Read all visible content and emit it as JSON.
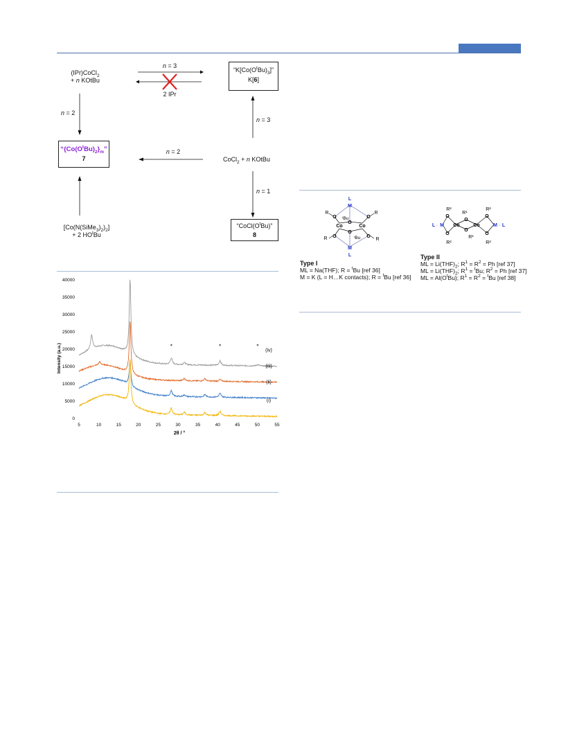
{
  "scheme": {
    "ipr_cocl2": "(IPr)CoCl",
    "ipr_cocl2_sub": "2",
    "plus_kotbu": "+ n KOtBu",
    "arrow_top_label": "n = 3",
    "arrow_top_reverse_label": "2 IPr",
    "k6_line1_pre": "“K[Co(O",
    "k6_line1_sup": "t",
    "k6_line1_post": "Bu)",
    "k6_line1_sub": "3",
    "k6_line1_end": "]”",
    "k6_line2": "K[6]",
    "arrow_left_down_label": "n = 2",
    "arrow_right_up_label": "n = 3",
    "compound7_pre": "“{Co(O",
    "compound7_sup": "t",
    "compound7_mid": "Bu)",
    "compound7_sub": "2",
    "compound7_end": "}",
    "compound7_sub2": "m",
    "compound7_close": "”",
    "compound7_num": "7",
    "arrow_mid_label": "n = 2",
    "cocl2_kotbu": "CoCl2 + n KOtBu",
    "arrow_down_label": "n = 1",
    "co_amide_line1": "[Co(N(SiMe3)2)2]",
    "co_amide_line2": "+ 2 HOtBu",
    "compound8_line1": "“CoCl(OtBu)”",
    "compound8_num": "8"
  },
  "chart_data": {
    "type": "line",
    "xlabel": "2θ / °",
    "ylabel": "Intensity (a.u.)",
    "xlim": [
      5,
      55
    ],
    "ylim": [
      0,
      40000
    ],
    "xticks": [
      5,
      10,
      15,
      20,
      25,
      30,
      35,
      40,
      45,
      50,
      55
    ],
    "yticks": [
      0,
      5000,
      10000,
      15000,
      20000,
      25000,
      30000,
      35000,
      40000
    ],
    "series": [
      {
        "name": "(iv)",
        "color": "#9a9a9a",
        "offset": 16000,
        "features": {
          "broad_peak_x": 12,
          "broad_peak_height": 5200,
          "sharp_peaks": [
            [
              8.2,
              4200
            ],
            [
              17.9,
              21500
            ],
            [
              28.3,
              1900
            ],
            [
              31.6,
              700
            ],
            [
              40.6,
              1300
            ],
            [
              50.1,
              400
            ]
          ]
        }
      },
      {
        "name": "(iii)",
        "color": "#e26b2a",
        "offset": 11400,
        "features": {
          "broad_peak_x": 11,
          "broad_peak_height": 4200,
          "sharp_peaks": [
            [
              10.2,
              900
            ],
            [
              17.9,
              15000
            ],
            [
              31.6,
              600
            ],
            [
              36.8,
              700
            ],
            [
              40.6,
              500
            ]
          ]
        }
      },
      {
        "name": "(ii)",
        "color": "#3c7cc8",
        "offset": 6800,
        "features": {
          "broad_peak_x": 12.5,
          "broad_peak_height": 5100,
          "sharp_peaks": [
            [
              17.9,
              7000
            ],
            [
              28.3,
              1600
            ],
            [
              31.6,
              500
            ],
            [
              36.8,
              700
            ],
            [
              40.6,
              1100
            ]
          ]
        }
      },
      {
        "name": "(i)",
        "color": "#f2b400",
        "offset": 1500,
        "features": {
          "broad_peak_x": 12.5,
          "broad_peak_height": 5500,
          "sharp_peaks": [
            [
              17.9,
              12500
            ],
            [
              28.3,
              1900
            ],
            [
              31.6,
              800
            ],
            [
              36.8,
              800
            ],
            [
              40.6,
              1200
            ]
          ]
        }
      }
    ],
    "markers": [
      {
        "x": 28.3,
        "label": "*"
      },
      {
        "x": 40.6,
        "label": "*"
      },
      {
        "x": 50.1,
        "label": "*"
      }
    ]
  },
  "structures": {
    "type1_title": "Type I",
    "type1_line1": "ML = Na(THF); R = tBu [ref 36]",
    "type1_line2": "M = K (L = H…K contacts); R = tBu [ref 36]",
    "type2_title": "Type II",
    "type2_line1": "ML = Li(THF)2; R1 = R2 = Ph [ref 37]",
    "type2_line2": "ML = Li(THF)2; R1 = tBu; R2 = Ph [ref 37]",
    "type2_line3": "ML = Al(OtBu); R1 = R2 = tBu [ref 38]"
  }
}
